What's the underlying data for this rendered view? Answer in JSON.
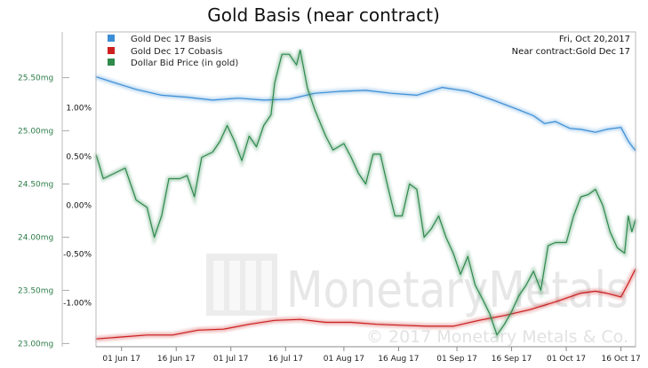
{
  "chart_data": {
    "type": "line",
    "title": "Gold Basis (near contract)",
    "info": {
      "date": "Fri, Oct 20,2017",
      "contract": "Near contract:Gold Dec 17"
    },
    "x_tick_labels": [
      "01 Jun 17",
      "16 Jun 17",
      "01 Jul 17",
      "16 Jul 17",
      "01 Aug 17",
      "16 Aug 17",
      "01 Sep 17",
      "16 Sep 17",
      "01 Oct 17",
      "16 Oct 17"
    ],
    "x_start": "2017-05-25",
    "x_end": "2017-10-20",
    "left_axis": {
      "labels": [
        "25.50mg",
        "25.00mg",
        "24.50mg",
        "24.00mg",
        "23.50mg",
        "23.00mg"
      ],
      "values": [
        25.5,
        25.0,
        24.5,
        24.0,
        23.5,
        23.0
      ],
      "range": [
        22.97,
        25.93
      ]
    },
    "right_axis": {
      "labels": [
        "1.00%",
        "0.50%",
        "0.00%",
        "-0.50%",
        "-1.00%"
      ],
      "values": [
        1.0,
        0.5,
        0.0,
        -0.5,
        -1.0
      ],
      "range": [
        -1.45,
        1.78
      ]
    },
    "legend": "top-left",
    "grid": false,
    "series": [
      {
        "name": "Gold Dec 17 Basis",
        "axis": "right",
        "color": "#3d8ed6",
        "points": [
          [
            "2017-05-25",
            1.32
          ],
          [
            "2017-05-30",
            1.26
          ],
          [
            "2017-06-05",
            1.19
          ],
          [
            "2017-06-12",
            1.13
          ],
          [
            "2017-06-19",
            1.11
          ],
          [
            "2017-06-26",
            1.08
          ],
          [
            "2017-07-03",
            1.1
          ],
          [
            "2017-07-10",
            1.08
          ],
          [
            "2017-07-17",
            1.09
          ],
          [
            "2017-07-24",
            1.15
          ],
          [
            "2017-07-31",
            1.17
          ],
          [
            "2017-08-07",
            1.18
          ],
          [
            "2017-08-14",
            1.15
          ],
          [
            "2017-08-21",
            1.13
          ],
          [
            "2017-08-28",
            1.21
          ],
          [
            "2017-09-04",
            1.17
          ],
          [
            "2017-09-11",
            1.08
          ],
          [
            "2017-09-18",
            0.98
          ],
          [
            "2017-09-22",
            0.92
          ],
          [
            "2017-09-25",
            0.84
          ],
          [
            "2017-09-28",
            0.86
          ],
          [
            "2017-10-02",
            0.79
          ],
          [
            "2017-10-05",
            0.78
          ],
          [
            "2017-10-09",
            0.75
          ],
          [
            "2017-10-12",
            0.78
          ],
          [
            "2017-10-16",
            0.8
          ],
          [
            "2017-10-18",
            0.66
          ],
          [
            "2017-10-20",
            0.56
          ]
        ]
      },
      {
        "name": "Gold Dec 17 Cobasis",
        "axis": "right",
        "color": "#cc1f1f",
        "points": [
          [
            "2017-05-25",
            -1.37
          ],
          [
            "2017-06-01",
            -1.35
          ],
          [
            "2017-06-08",
            -1.33
          ],
          [
            "2017-06-15",
            -1.33
          ],
          [
            "2017-06-22",
            -1.28
          ],
          [
            "2017-06-29",
            -1.27
          ],
          [
            "2017-07-06",
            -1.22
          ],
          [
            "2017-07-13",
            -1.18
          ],
          [
            "2017-07-20",
            -1.17
          ],
          [
            "2017-07-27",
            -1.2
          ],
          [
            "2017-08-03",
            -1.2
          ],
          [
            "2017-08-10",
            -1.22
          ],
          [
            "2017-08-17",
            -1.23
          ],
          [
            "2017-08-24",
            -1.24
          ],
          [
            "2017-08-31",
            -1.24
          ],
          [
            "2017-09-07",
            -1.18
          ],
          [
            "2017-09-14",
            -1.13
          ],
          [
            "2017-09-21",
            -1.07
          ],
          [
            "2017-09-28",
            -0.99
          ],
          [
            "2017-10-05",
            -0.9
          ],
          [
            "2017-10-09",
            -0.88
          ],
          [
            "2017-10-12",
            -0.9
          ],
          [
            "2017-10-16",
            -0.94
          ],
          [
            "2017-10-18",
            -0.8
          ],
          [
            "2017-10-20",
            -0.65
          ]
        ]
      },
      {
        "name": "Dollar Bid Price (in gold)",
        "axis": "left",
        "color": "#2f8a4c",
        "points": [
          [
            "2017-05-25",
            24.78
          ],
          [
            "2017-05-27",
            24.55
          ],
          [
            "2017-05-30",
            24.6
          ],
          [
            "2017-06-02",
            24.65
          ],
          [
            "2017-06-05",
            24.35
          ],
          [
            "2017-06-08",
            24.28
          ],
          [
            "2017-06-10",
            24.0
          ],
          [
            "2017-06-12",
            24.2
          ],
          [
            "2017-06-14",
            24.55
          ],
          [
            "2017-06-17",
            24.55
          ],
          [
            "2017-06-19",
            24.58
          ],
          [
            "2017-06-21",
            24.38
          ],
          [
            "2017-06-23",
            24.75
          ],
          [
            "2017-06-26",
            24.8
          ],
          [
            "2017-06-28",
            24.9
          ],
          [
            "2017-06-30",
            25.05
          ],
          [
            "2017-07-02",
            24.9
          ],
          [
            "2017-07-04",
            24.72
          ],
          [
            "2017-07-06",
            24.95
          ],
          [
            "2017-07-08",
            24.85
          ],
          [
            "2017-07-10",
            25.05
          ],
          [
            "2017-07-12",
            25.15
          ],
          [
            "2017-07-13",
            25.45
          ],
          [
            "2017-07-15",
            25.72
          ],
          [
            "2017-07-17",
            25.72
          ],
          [
            "2017-07-19",
            25.62
          ],
          [
            "2017-07-20",
            25.76
          ],
          [
            "2017-07-22",
            25.4
          ],
          [
            "2017-07-24",
            25.2
          ],
          [
            "2017-07-27",
            24.95
          ],
          [
            "2017-07-29",
            24.82
          ],
          [
            "2017-08-01",
            24.88
          ],
          [
            "2017-08-03",
            24.75
          ],
          [
            "2017-08-05",
            24.6
          ],
          [
            "2017-08-07",
            24.5
          ],
          [
            "2017-08-09",
            24.78
          ],
          [
            "2017-08-11",
            24.78
          ],
          [
            "2017-08-13",
            24.48
          ],
          [
            "2017-08-15",
            24.2
          ],
          [
            "2017-08-17",
            24.2
          ],
          [
            "2017-08-19",
            24.5
          ],
          [
            "2017-08-21",
            24.45
          ],
          [
            "2017-08-23",
            24.0
          ],
          [
            "2017-08-25",
            24.08
          ],
          [
            "2017-08-27",
            24.2
          ],
          [
            "2017-08-29",
            24.0
          ],
          [
            "2017-08-31",
            23.85
          ],
          [
            "2017-09-02",
            23.65
          ],
          [
            "2017-09-04",
            23.82
          ],
          [
            "2017-09-06",
            23.55
          ],
          [
            "2017-09-08",
            23.42
          ],
          [
            "2017-09-10",
            23.28
          ],
          [
            "2017-09-12",
            23.08
          ],
          [
            "2017-09-14",
            23.18
          ],
          [
            "2017-09-16",
            23.3
          ],
          [
            "2017-09-18",
            23.45
          ],
          [
            "2017-09-20",
            23.55
          ],
          [
            "2017-09-22",
            23.68
          ],
          [
            "2017-09-24",
            23.5
          ],
          [
            "2017-09-26",
            23.92
          ],
          [
            "2017-09-28",
            23.95
          ],
          [
            "2017-10-01",
            23.95
          ],
          [
            "2017-10-03",
            24.2
          ],
          [
            "2017-10-05",
            24.38
          ],
          [
            "2017-10-07",
            24.4
          ],
          [
            "2017-10-09",
            24.45
          ],
          [
            "2017-10-11",
            24.3
          ],
          [
            "2017-10-13",
            24.05
          ],
          [
            "2017-10-15",
            23.9
          ],
          [
            "2017-10-17",
            23.85
          ],
          [
            "2017-10-18",
            24.2
          ],
          [
            "2017-10-19",
            24.05
          ],
          [
            "2017-10-20",
            24.17
          ]
        ]
      }
    ],
    "watermark": {
      "main": "MonetaryMetals",
      "sub": "© 2017 Monetary Metals & Co."
    }
  }
}
